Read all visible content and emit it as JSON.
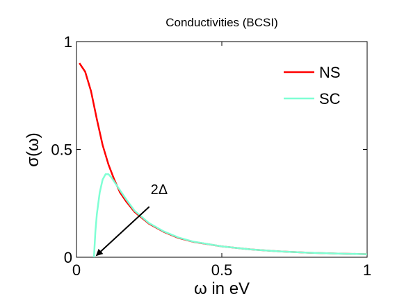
{
  "chart_data": {
    "type": "line",
    "title": "Conductivities (BCSI)",
    "xlabel": "ω in eV",
    "ylabel": "σ(ω)",
    "xlim": [
      0,
      1
    ],
    "ylim": [
      0,
      1
    ],
    "xticks": [
      "0",
      "0.5",
      "1"
    ],
    "yticks": [
      "0",
      "0.5",
      "1"
    ],
    "grid": false,
    "legend_position": "top-right",
    "series": [
      {
        "name": "NS",
        "color": "#ff0000",
        "x": [
          0.01,
          0.03,
          0.05,
          0.07,
          0.09,
          0.11,
          0.13,
          0.15,
          0.17,
          0.2,
          0.25,
          0.3,
          0.35,
          0.4,
          0.5,
          0.6,
          0.7,
          0.8,
          0.9,
          1.0
        ],
        "y": [
          0.9,
          0.86,
          0.77,
          0.64,
          0.52,
          0.43,
          0.36,
          0.3,
          0.26,
          0.21,
          0.155,
          0.118,
          0.09,
          0.072,
          0.05,
          0.036,
          0.027,
          0.021,
          0.017,
          0.014
        ]
      },
      {
        "name": "SC",
        "color": "#7fffd4",
        "x": [
          0.06,
          0.065,
          0.07,
          0.08,
          0.09,
          0.1,
          0.11,
          0.12,
          0.13,
          0.15,
          0.17,
          0.2,
          0.25,
          0.3,
          0.35,
          0.4,
          0.5,
          0.6,
          0.7,
          0.8,
          0.9,
          1.0
        ],
        "y": [
          0.0,
          0.12,
          0.2,
          0.3,
          0.36,
          0.385,
          0.385,
          0.37,
          0.35,
          0.31,
          0.27,
          0.215,
          0.158,
          0.12,
          0.092,
          0.073,
          0.05,
          0.036,
          0.027,
          0.021,
          0.017,
          0.014
        ]
      }
    ],
    "annotations": [
      {
        "text": "2Δ",
        "arrow_from": [
          0.26,
          0.26
        ],
        "arrow_to": [
          0.07,
          0.01
        ]
      }
    ]
  }
}
